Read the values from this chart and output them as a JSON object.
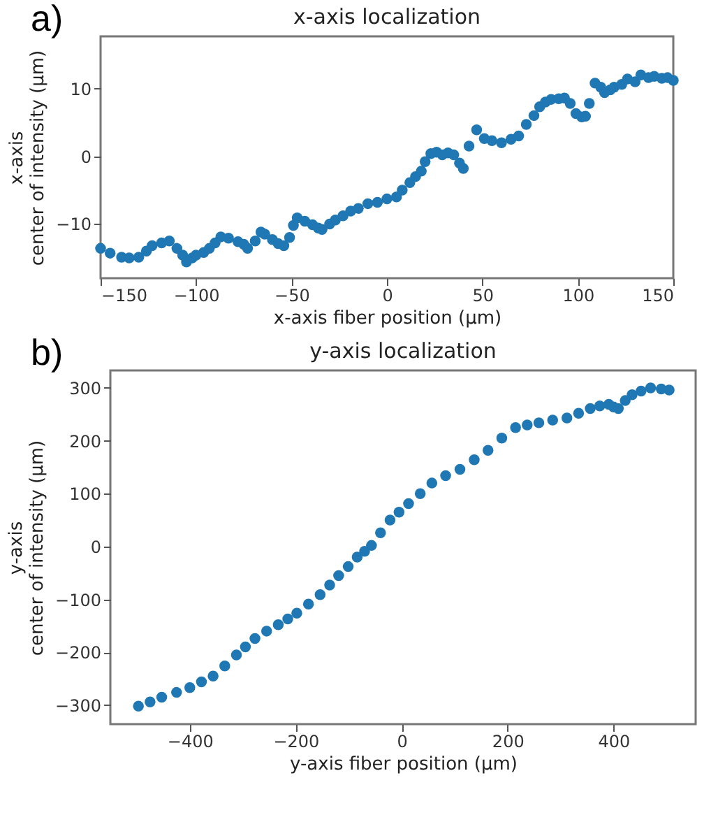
{
  "chart_data": [
    {
      "type": "scatter",
      "title": "x-axis localization",
      "xlabel": "x-axis fiber position (µm)",
      "ylabel": "x-axis\ncenter of intensity (µm)",
      "annotations": [
        "a)"
      ],
      "marker": "circle",
      "grid": false,
      "xlim": [
        -150,
        150
      ],
      "ylim": [
        -18,
        17.7
      ],
      "xticks": [
        -150,
        -100,
        -50,
        0,
        50,
        100,
        150
      ],
      "yticks": [
        -10,
        0,
        10
      ],
      "x": [
        -150,
        -145,
        -139,
        -135,
        -130,
        -126,
        -123,
        -118,
        -114,
        -110,
        -107,
        -105,
        -102,
        -100,
        -96,
        -93,
        -90,
        -87,
        -83,
        -78,
        -75,
        -73,
        -69,
        -66,
        -64,
        -60,
        -57,
        -54,
        -51,
        -49,
        -47,
        -43,
        -39,
        -36,
        -34,
        -30,
        -27,
        -23,
        -19,
        -15,
        -10,
        -5,
        0,
        5,
        8,
        12,
        15,
        18,
        20,
        23,
        26,
        29,
        32,
        35,
        38,
        40,
        43,
        47,
        51,
        55,
        60,
        65,
        69,
        73,
        77,
        80,
        83,
        86,
        90,
        93,
        96,
        99,
        102,
        104,
        106,
        109,
        112,
        114,
        117,
        119,
        123,
        126,
        130,
        133,
        137,
        140,
        144,
        147,
        150
      ],
      "series": [
        {
          "color": "#1f77b4",
          "values": [
            -13.6,
            -14.3,
            -14.9,
            -15.0,
            -14.9,
            -14.0,
            -13.2,
            -12.8,
            -12.5,
            -13.6,
            -14.6,
            -15.6,
            -15.0,
            -14.6,
            -14.2,
            -13.6,
            -12.8,
            -11.9,
            -12.1,
            -12.6,
            -13.0,
            -13.6,
            -12.5,
            -11.2,
            -11.5,
            -12.3,
            -12.9,
            -13.2,
            -12.0,
            -10.2,
            -9.1,
            -9.6,
            -10.1,
            -10.6,
            -10.8,
            -10.0,
            -9.4,
            -8.8,
            -8.1,
            -7.7,
            -7.0,
            -6.8,
            -6.3,
            -6.0,
            -5.0,
            -3.9,
            -3.0,
            -2.2,
            -0.8,
            0.4,
            0.6,
            0.2,
            0.5,
            0.2,
            -1.0,
            -1.8,
            1.5,
            3.9,
            2.6,
            2.3,
            2.0,
            2.5,
            3.0,
            4.7,
            6.0,
            7.3,
            8.0,
            8.4,
            8.5,
            8.6,
            7.8,
            6.3,
            5.8,
            5.9,
            7.8,
            10.8,
            10.2,
            9.4,
            9.8,
            10.2,
            10.6,
            11.4,
            11.0,
            12.0,
            11.6,
            11.8,
            11.5,
            11.6,
            11.2
          ]
        }
      ]
    },
    {
      "type": "scatter",
      "title": "y-axis localization",
      "xlabel": "y-axis fiber position (µm)",
      "ylabel": "y-axis\ncenter of intensity (µm)",
      "annotations": [
        "b)"
      ],
      "marker": "circle",
      "grid": false,
      "xlim": [
        -550,
        555
      ],
      "ylim": [
        -336,
        333
      ],
      "xticks": [
        -400,
        -200,
        0,
        200,
        400
      ],
      "yticks": [
        -300,
        -200,
        -100,
        0,
        100,
        200,
        300
      ],
      "x": [
        -497,
        -475,
        -453,
        -425,
        -400,
        -378,
        -356,
        -334,
        -312,
        -295,
        -277,
        -255,
        -233,
        -215,
        -198,
        -176,
        -154,
        -136,
        -119,
        -101,
        -84,
        -70,
        -57,
        -40,
        -22,
        -5,
        13,
        35,
        57,
        83,
        110,
        137,
        163,
        189,
        215,
        237,
        259,
        285,
        312,
        334,
        356,
        374,
        391,
        400,
        409,
        422,
        435,
        452,
        470,
        490,
        505
      ],
      "series": [
        {
          "color": "#1f77b4",
          "values": [
            -302,
            -294,
            -285,
            -276,
            -267,
            -256,
            -245,
            -226,
            -205,
            -190,
            -174,
            -160,
            -148,
            -137,
            -126,
            -109,
            -91,
            -73,
            -55,
            -38,
            -20,
            -9,
            2,
            26,
            50,
            65,
            81,
            100,
            120,
            134,
            146,
            164,
            182,
            205,
            225,
            230,
            234,
            239,
            243,
            252,
            261,
            266,
            269,
            264,
            261,
            276,
            287,
            294,
            300,
            298,
            296
          ]
        }
      ]
    }
  ]
}
